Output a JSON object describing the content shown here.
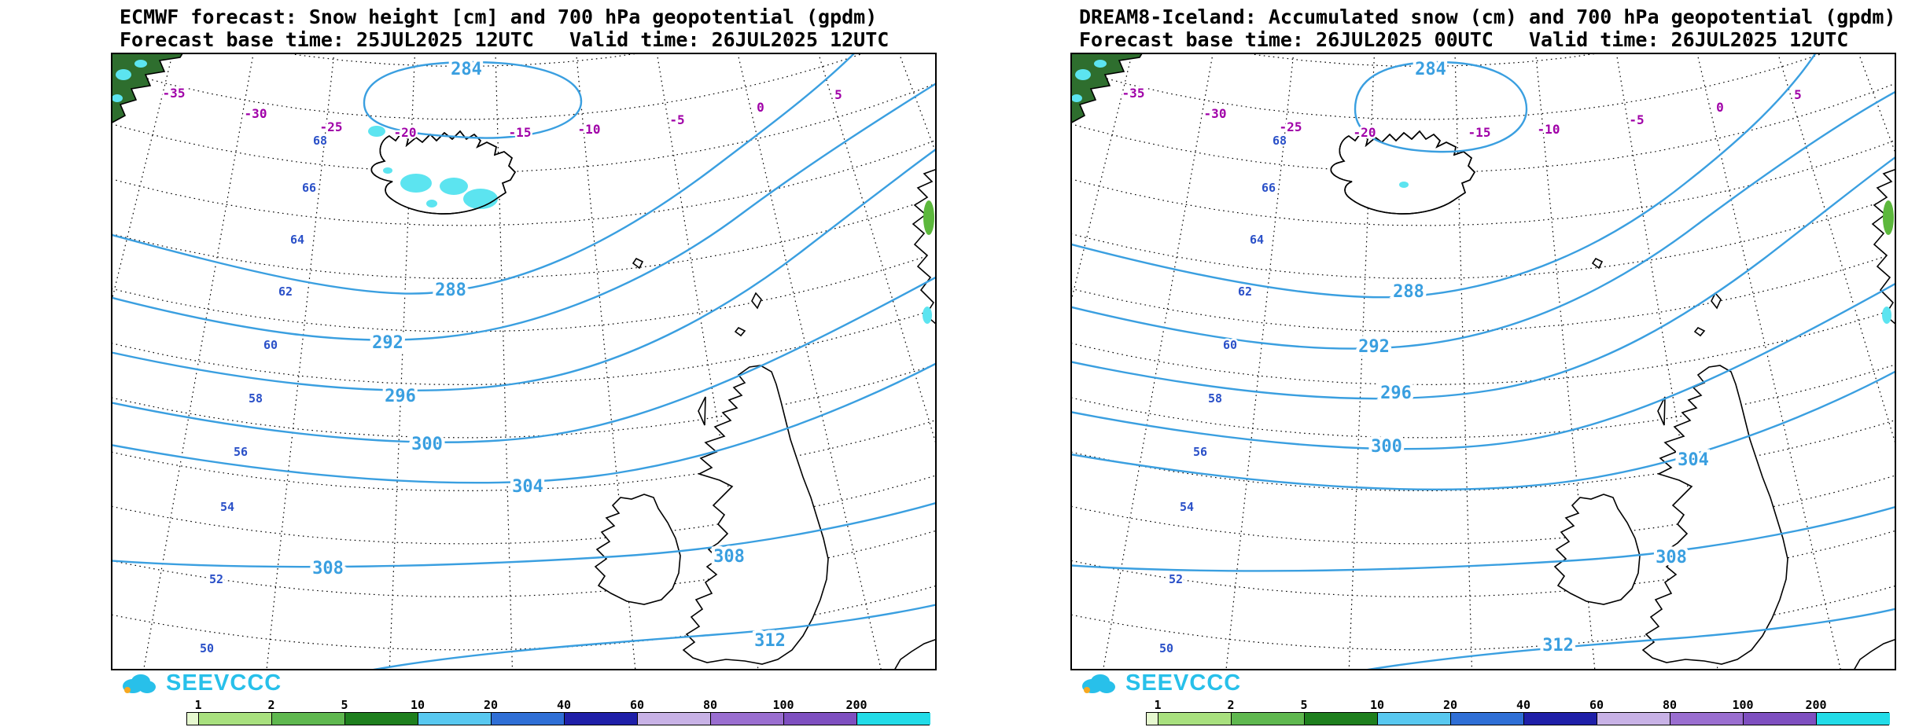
{
  "panels": [
    {
      "id": "ecmwf",
      "title_line1": "ECMWF forecast: Snow height [cm] and 700 hPa geopotential (gpdm)",
      "title_line2": "Forecast base time: 25JUL2025 12UTC   Valid time: 26JUL2025 12UTC"
    },
    {
      "id": "dream8",
      "title_line1": "DREAM8-Iceland: Accumulated snow (cm) and 700 hPa geopotential (gpdm)",
      "title_line2": "Forecast base time: 26JUL2025 00UTC   Valid time: 26JUL2025 12UTC"
    }
  ],
  "map": {
    "longitude_labels": [
      "-35",
      "-30",
      "-25",
      "-20",
      "-15",
      "-10",
      "-5",
      "0",
      "5"
    ],
    "latitude_labels": [
      "68",
      "66",
      "64",
      "62",
      "60",
      "58",
      "56",
      "54",
      "52",
      "50"
    ],
    "geopotential_levels": [
      "284",
      "288",
      "292",
      "296",
      "300",
      "304",
      "308",
      "312"
    ]
  },
  "legend": {
    "ticks": [
      "1",
      "2",
      "5",
      "10",
      "20",
      "40",
      "60",
      "80",
      "100",
      "200"
    ],
    "colors": [
      "#e6f8cf",
      "#a8e07e",
      "#5fb84f",
      "#1e7f1e",
      "#58c8f0",
      "#2f6fd6",
      "#1f1fa8",
      "#c8b2e6",
      "#9a6ed0",
      "#7e4fc0",
      "#22dce8"
    ]
  },
  "branding": {
    "logo_text": "SEEVCCC",
    "logo_color": "#28c0ea"
  },
  "colors": {
    "contour": "#3a9fe0",
    "longitude_label": "#a000a8",
    "latitude_label": "#2a50c8",
    "snow_fill": "#5ce4f0",
    "land_green": "#2e6e2e",
    "norway_green": "#5cb83c",
    "grid": "#000000",
    "title_text": "#000000"
  }
}
